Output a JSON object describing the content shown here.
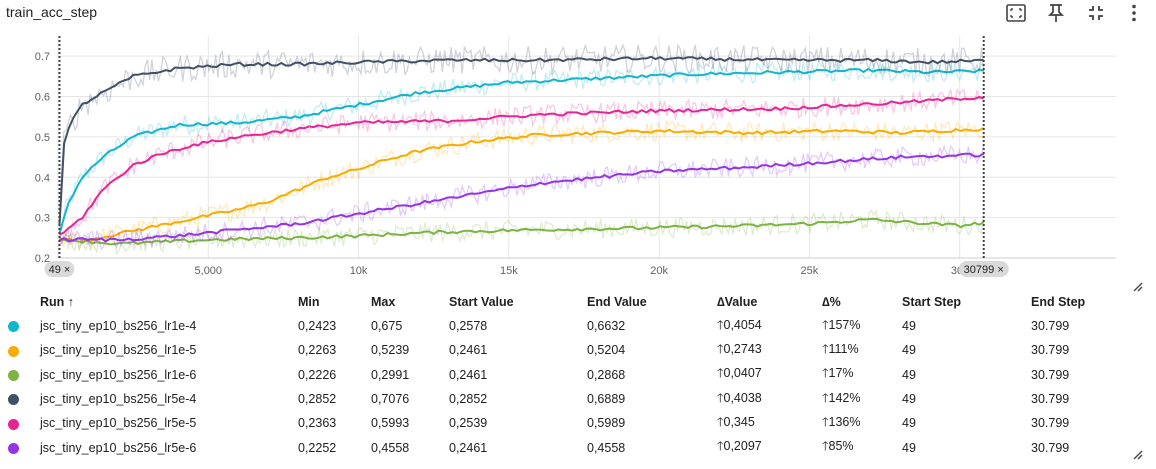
{
  "header": {
    "title": "train_acc_step",
    "icons": [
      "fit-domain-icon",
      "pin-icon",
      "exit-fullscreen-icon",
      "more-vert-icon"
    ]
  },
  "chart_data": {
    "type": "line",
    "title": "train_acc_step",
    "xlabel": "",
    "ylabel": "",
    "xlim": [
      0,
      35200
    ],
    "ylim": [
      0.2,
      0.75
    ],
    "x_ticks": [
      {
        "value": 0,
        "label": "0"
      },
      {
        "value": 5000,
        "label": "5,000"
      },
      {
        "value": 10000,
        "label": "10k"
      },
      {
        "value": 15000,
        "label": "15k"
      },
      {
        "value": 20000,
        "label": "20k"
      },
      {
        "value": 25000,
        "label": "25k"
      },
      {
        "value": 30000,
        "label": "30k"
      }
    ],
    "y_ticks": [
      {
        "value": 0.2,
        "label": "0.2"
      },
      {
        "value": 0.3,
        "label": "0.3"
      },
      {
        "value": 0.4,
        "label": "0.4"
      },
      {
        "value": 0.5,
        "label": "0.5"
      },
      {
        "value": 0.6,
        "label": "0.6"
      },
      {
        "value": 0.7,
        "label": "0.7"
      }
    ],
    "grid": true,
    "range_markers": [
      {
        "value": 49,
        "label": "49 ×"
      },
      {
        "value": 30799,
        "label": "30799 ×"
      }
    ],
    "series": [
      {
        "name": "jsc_tiny_ep10_bs256_lr1e-4",
        "color": "#12b5cb",
        "x": [
          49,
          300,
          800,
          1500,
          2500,
          4000,
          6000,
          8000,
          10000,
          12000,
          15000,
          18000,
          21000,
          24000,
          27000,
          29000,
          30799
        ],
        "y": [
          0.2578,
          0.33,
          0.4,
          0.45,
          0.5,
          0.53,
          0.535,
          0.55,
          0.58,
          0.61,
          0.635,
          0.645,
          0.655,
          0.66,
          0.665,
          0.66,
          0.6632
        ]
      },
      {
        "name": "jsc_tiny_ep10_bs256_lr1e-5",
        "color": "#f9ab00",
        "x": [
          49,
          1000,
          2000,
          3000,
          4000,
          5000,
          6000,
          7000,
          8000,
          9000,
          10000,
          11000,
          12000,
          14000,
          16000,
          18000,
          20000,
          23000,
          26000,
          28000,
          30799
        ],
        "y": [
          0.2461,
          0.245,
          0.26,
          0.275,
          0.29,
          0.305,
          0.32,
          0.34,
          0.37,
          0.4,
          0.42,
          0.445,
          0.465,
          0.49,
          0.505,
          0.51,
          0.515,
          0.51,
          0.515,
          0.51,
          0.5204
        ]
      },
      {
        "name": "jsc_tiny_ep10_bs256_lr1e-6",
        "color": "#7cb342",
        "x": [
          49,
          2000,
          5000,
          8000,
          10000,
          13000,
          16000,
          20000,
          23000,
          25000,
          26000,
          27000,
          28000,
          30000,
          30799
        ],
        "y": [
          0.2461,
          0.235,
          0.245,
          0.25,
          0.255,
          0.265,
          0.27,
          0.275,
          0.28,
          0.285,
          0.29,
          0.295,
          0.29,
          0.28,
          0.2868
        ]
      },
      {
        "name": "jsc_tiny_ep10_bs256_lr5e-4",
        "color": "#425066",
        "x": [
          49,
          150,
          400,
          800,
          1500,
          2500,
          4000,
          6000,
          8000,
          10000,
          13000,
          16000,
          20000,
          24000,
          27000,
          29000,
          30799
        ],
        "y": [
          0.2852,
          0.47,
          0.53,
          0.58,
          0.61,
          0.65,
          0.67,
          0.68,
          0.68,
          0.685,
          0.69,
          0.69,
          0.695,
          0.69,
          0.69,
          0.685,
          0.6889
        ]
      },
      {
        "name": "jsc_tiny_ep10_bs256_lr5e-5",
        "color": "#e52592",
        "x": [
          49,
          800,
          1500,
          2500,
          3500,
          4500,
          6000,
          8000,
          10000,
          13000,
          16000,
          20000,
          24000,
          28000,
          30799
        ],
        "y": [
          0.2539,
          0.3,
          0.37,
          0.43,
          0.46,
          0.48,
          0.5,
          0.52,
          0.535,
          0.54,
          0.555,
          0.565,
          0.57,
          0.585,
          0.5989
        ]
      },
      {
        "name": "jsc_tiny_ep10_bs256_lr5e-6",
        "color": "#9334e6",
        "x": [
          49,
          2000,
          4000,
          6000,
          8000,
          10000,
          12000,
          14000,
          16000,
          18000,
          20000,
          23000,
          26000,
          28000,
          30799
        ],
        "y": [
          0.2461,
          0.245,
          0.255,
          0.27,
          0.285,
          0.31,
          0.335,
          0.36,
          0.385,
          0.4,
          0.415,
          0.425,
          0.44,
          0.45,
          0.4558
        ]
      }
    ]
  },
  "table": {
    "columns": [
      "Run ↑",
      "Min",
      "Max",
      "Start Value",
      "End Value",
      "∆Value",
      "∆%",
      "Start Step",
      "End Step"
    ],
    "rows": [
      {
        "run": "jsc_tiny_ep10_bs256_lr1e-4",
        "color": "#12b5cb",
        "min": "0,2423",
        "max": "0,675",
        "start": "0,2578",
        "end": "0,6632",
        "dvalue": "🡑0,4054",
        "dpct": "🡑157%",
        "start_step": "49",
        "end_step": "30.799"
      },
      {
        "run": "jsc_tiny_ep10_bs256_lr1e-5",
        "color": "#f9ab00",
        "min": "0,2263",
        "max": "0,5239",
        "start": "0,2461",
        "end": "0,5204",
        "dvalue": "🡑0,2743",
        "dpct": "🡑111%",
        "start_step": "49",
        "end_step": "30.799"
      },
      {
        "run": "jsc_tiny_ep10_bs256_lr1e-6",
        "color": "#7cb342",
        "min": "0,2226",
        "max": "0,2991",
        "start": "0,2461",
        "end": "0,2868",
        "dvalue": "🡑0,0407",
        "dpct": "🡑17%",
        "start_step": "49",
        "end_step": "30.799"
      },
      {
        "run": "jsc_tiny_ep10_bs256_lr5e-4",
        "color": "#425066",
        "min": "0,2852",
        "max": "0,7076",
        "start": "0,2852",
        "end": "0,6889",
        "dvalue": "🡑0,4038",
        "dpct": "🡑142%",
        "start_step": "49",
        "end_step": "30.799"
      },
      {
        "run": "jsc_tiny_ep10_bs256_lr5e-5",
        "color": "#e52592",
        "min": "0,2363",
        "max": "0,5993",
        "start": "0,2539",
        "end": "0,5989",
        "dvalue": "🡑0,345",
        "dpct": "🡑136%",
        "start_step": "49",
        "end_step": "30.799"
      },
      {
        "run": "jsc_tiny_ep10_bs256_lr5e-6",
        "color": "#9334e6",
        "min": "0,2252",
        "max": "0,4558",
        "start": "0,2461",
        "end": "0,4558",
        "dvalue": "🡑0,2097",
        "dpct": "🡑85%",
        "start_step": "49",
        "end_step": "30.799"
      }
    ]
  }
}
